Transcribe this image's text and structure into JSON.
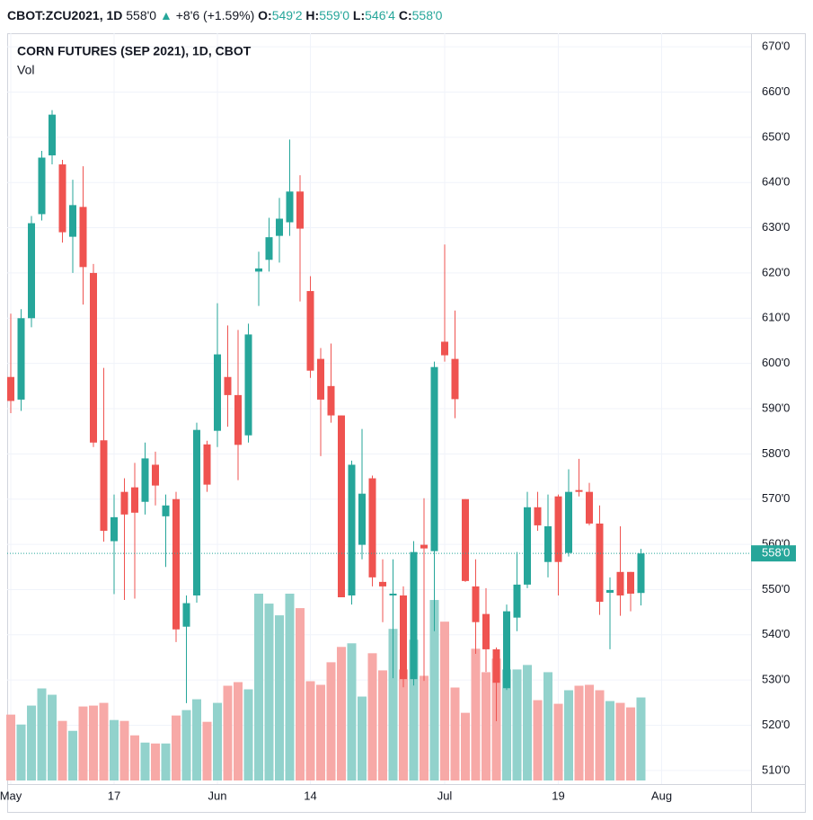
{
  "header": {
    "symbol": "CBOT:ZCU2021, 1D",
    "last": "558'0",
    "arrow": "▲",
    "change": "+8'6 (+1.59%)",
    "o_label": "O:",
    "o": "549'2",
    "h_label": "H:",
    "h": "559'0",
    "l_label": "L:",
    "l": "546'4",
    "c_label": "C:",
    "c": "558'0"
  },
  "chart_data": {
    "type": "candlestick",
    "title": "CORN FUTURES (SEP 2021), 1D, CBOT",
    "volume_label": "Vol",
    "up_color": "#26a69a",
    "down_color": "#ef5350",
    "volume_up_color": "#92d2cc",
    "volume_down_color": "#f7a9a7",
    "open": [
      597,
      592,
      610,
      633,
      646,
      644,
      628,
      634.6,
      620,
      583,
      560.7,
      571.6,
      572.6,
      569.4,
      577.6,
      566.2,
      570,
      541.8,
      548.7,
      582.1,
      585.1,
      597,
      593,
      584.1,
      620.3,
      622.9,
      628.2,
      631.2,
      638,
      616,
      601,
      595,
      588.5,
      548.7,
      559.9,
      574.6,
      551.7,
      548.7,
      548.7,
      530.2,
      559.9,
      558.5,
      604.8,
      601,
      570,
      550.7,
      544.6,
      536.8,
      528.2,
      543.8,
      551.1,
      568.2,
      556.1,
      570.6,
      558.1,
      572,
      571.6,
      564.6,
      549.3,
      553.9,
      553.9,
      549.25
    ],
    "high": [
      611,
      612,
      632.6,
      647,
      656,
      645,
      640.6,
      643.6,
      622,
      599,
      571,
      574.6,
      578,
      582.5,
      580.5,
      571,
      571.6,
      548.7,
      586.9,
      582.9,
      613.3,
      608.4,
      607.4,
      608.8,
      624.7,
      632.2,
      636.6,
      649.5,
      641.6,
      619.3,
      603.4,
      604.4,
      588.5,
      578.5,
      585.5,
      575.2,
      556.7,
      556.7,
      550.7,
      560.7,
      570.2,
      600.4,
      626.3,
      611.7,
      570,
      556.7,
      550.3,
      537.2,
      546.7,
      558.3,
      571.6,
      571.6,
      571,
      571,
      576.6,
      578.9,
      573.6,
      568.6,
      552.7,
      564,
      553.9,
      559
    ],
    "low": [
      589,
      589.5,
      608,
      631.6,
      644,
      626.7,
      620,
      613,
      581.5,
      560.6,
      549,
      547.7,
      548,
      566.6,
      568.6,
      555,
      538.4,
      524.9,
      547.1,
      571.6,
      581.5,
      586,
      574.2,
      582.5,
      612.7,
      620.3,
      622.3,
      628.2,
      613.7,
      596.8,
      579.5,
      586.9,
      548.3,
      546.7,
      556.7,
      550.7,
      542.8,
      530.4,
      528.4,
      528.8,
      529.8,
      540.8,
      600.4,
      587.9,
      551.7,
      535.8,
      531.8,
      520.9,
      527.8,
      540.8,
      550.3,
      563,
      552.7,
      548.7,
      557.3,
      570.6,
      564.2,
      544.4,
      536.8,
      544.2,
      545.2,
      546.5
    ],
    "close": [
      591.7,
      610,
      631,
      645.5,
      655,
      629,
      635,
      621.3,
      582.5,
      563,
      566,
      566.6,
      567,
      579,
      573,
      568.6,
      541.2,
      547,
      585.3,
      573.2,
      602,
      593,
      582,
      606.4,
      621,
      627.9,
      632,
      638,
      629.8,
      598.4,
      592,
      588.5,
      548.3,
      577.6,
      571.2,
      552.7,
      550.7,
      549.1,
      530.2,
      558.3,
      559.1,
      599.2,
      601.8,
      592.1,
      551.9,
      542.8,
      536.8,
      529.4,
      545.2,
      551.1,
      568.2,
      564.2,
      564,
      556.1,
      571.6,
      571.6,
      564.6,
      547.3,
      549.9,
      548.7,
      549.1,
      558
    ],
    "volume": [
      73,
      62,
      83,
      102,
      95,
      66,
      55,
      82,
      83,
      86,
      67,
      66,
      50,
      42,
      41,
      41,
      72,
      78,
      90,
      65,
      86,
      105,
      109,
      101,
      207,
      196,
      183,
      207,
      191,
      110,
      106,
      131,
      148,
      152,
      93,
      141,
      122,
      168,
      123,
      156,
      116,
      200,
      176,
      103,
      75,
      146,
      120,
      135,
      123,
      123,
      128,
      89,
      120,
      85,
      100,
      105,
      106,
      100,
      88,
      86,
      81,
      92
    ],
    "ylim": [
      507,
      673
    ],
    "yticks": [
      {
        "value": 510,
        "label": "510'0"
      },
      {
        "value": 520,
        "label": "520'0"
      },
      {
        "value": 530,
        "label": "530'0"
      },
      {
        "value": 540,
        "label": "540'0"
      },
      {
        "value": 550,
        "label": "550'0"
      },
      {
        "value": 560,
        "label": "560'0"
      },
      {
        "value": 570,
        "label": "570'0"
      },
      {
        "value": 580,
        "label": "580'0"
      },
      {
        "value": 590,
        "label": "590'0"
      },
      {
        "value": 600,
        "label": "600'0"
      },
      {
        "value": 610,
        "label": "610'0"
      },
      {
        "value": 620,
        "label": "620'0"
      },
      {
        "value": 630,
        "label": "630'0"
      },
      {
        "value": 640,
        "label": "640'0"
      },
      {
        "value": 650,
        "label": "650'0"
      },
      {
        "value": 660,
        "label": "660'0"
      },
      {
        "value": 670,
        "label": "670'0"
      }
    ],
    "xticks": [
      {
        "value": 0,
        "label": "May"
      },
      {
        "value": 10,
        "label": "17"
      },
      {
        "value": 20,
        "label": "Jun"
      },
      {
        "value": 29,
        "label": "14"
      },
      {
        "value": 42,
        "label": "Jul"
      },
      {
        "value": 53,
        "label": "19"
      },
      {
        "value": 63,
        "label": "Aug"
      }
    ],
    "last_price": {
      "value": 558,
      "label": "558'0"
    },
    "grid": true
  }
}
